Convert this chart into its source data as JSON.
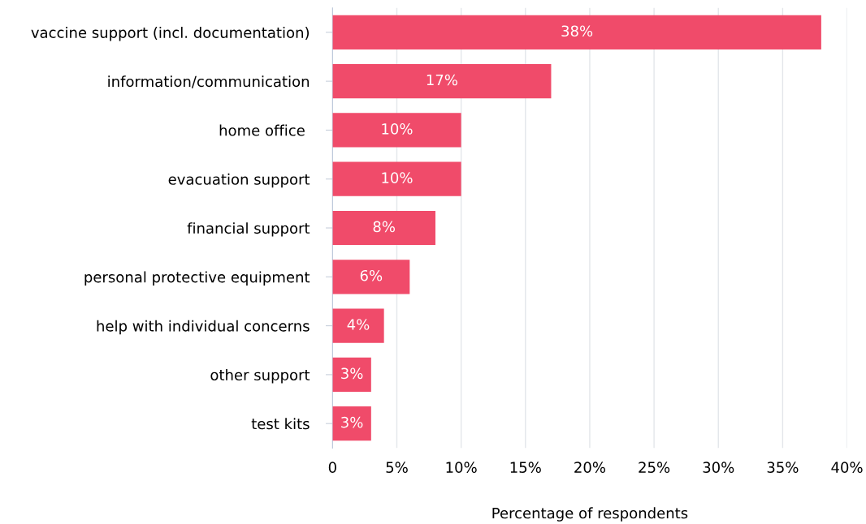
{
  "chart_data": {
    "type": "bar",
    "orientation": "horizontal",
    "xlabel": "Percentage of respondents",
    "categories": [
      "vaccine support (incl. documentation)",
      "information/communication",
      "home office ",
      "evacuation support",
      "financial support",
      "personal protective equipment",
      "help with individual concerns",
      "other support",
      "test kits"
    ],
    "values": [
      38,
      17,
      10,
      10,
      8,
      6,
      4,
      3,
      3
    ],
    "value_labels": [
      "38%",
      "17%",
      "10%",
      "10%",
      "8%",
      "6%",
      "4%",
      "3%",
      "3%"
    ],
    "color": "#f04b6a",
    "xlim": [
      0,
      40
    ],
    "xticks": [
      0,
      {
        "value": 5,
        "label": "5%"
      },
      {
        "value": 10,
        "label": "10%"
      },
      {
        "value": 15,
        "label": "15%"
      },
      {
        "value": 20,
        "label": "20%"
      },
      {
        "value": 25,
        "label": "25%"
      },
      {
        "value": 30,
        "label": "30%"
      },
      {
        "value": 35,
        "label": "35%"
      },
      {
        "value": 40,
        "label": "40%"
      }
    ],
    "grid": "x",
    "legend": false
  }
}
